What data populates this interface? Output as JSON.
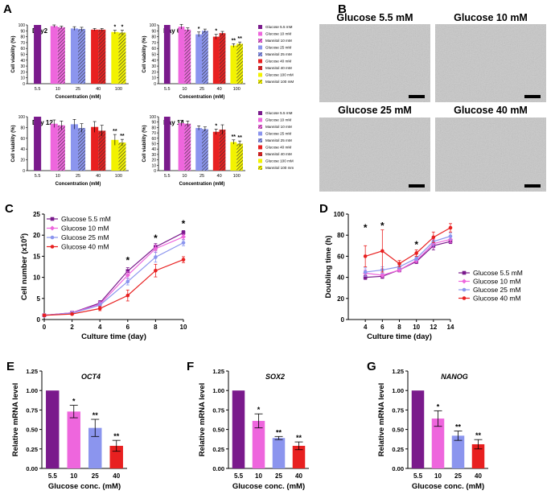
{
  "colors": {
    "g55": "#7a1a8c",
    "g10": "#ee66dd",
    "g25": "#8b95ee",
    "g40": "#e82020",
    "glu100": "#f2f200",
    "mannitol_hatch": "#333333"
  },
  "panels": {
    "A": {
      "letter": "A",
      "legend": [
        "Glucose 5.5 mM",
        "Glucose 10 mM",
        "Mannitol 10 mM",
        "Glucose 25 mM",
        "Mannitol 25 mM",
        "Glucose 40 mM",
        "Mannitol 40 mM",
        "Glucose 100 mM",
        "Mannitol 100 mM"
      ],
      "legend2": [
        "Glucose 5.5 mM",
        "Glucose 10 mM",
        "Mannitol 10 mM",
        "Glucose 25 mM",
        "Mannitol 25 mM",
        "Glucose 40 mM",
        "Mannitol 40 mM",
        "Glucose 100 mM",
        "Mannitol 100 mm"
      ]
    },
    "B": {
      "letter": "B",
      "images": [
        "Glucose 5.5 mM",
        "Glucose 10 mM",
        "Glucose 25 mM",
        "Glucose 40 mM"
      ]
    },
    "C": {
      "letter": "C"
    },
    "D": {
      "letter": "D"
    },
    "E": {
      "letter": "E"
    },
    "F": {
      "letter": "F"
    },
    "G": {
      "letter": "G"
    }
  },
  "chart_data": [
    {
      "id": "A1",
      "type": "bar",
      "title": "Day2",
      "xlabel": "Concentration (mM)",
      "ylabel": "Cell viability (%)",
      "ylim": [
        0,
        100
      ],
      "yticks": [
        0,
        10,
        20,
        30,
        40,
        50,
        60,
        70,
        80,
        90,
        100
      ],
      "groups": [
        "5.5",
        "10",
        "25",
        "40",
        "100"
      ],
      "series": [
        {
          "name": "Glucose 5.5",
          "values": [
            100
          ]
        },
        {
          "name": "Glucose 10",
          "values": [
            98
          ]
        },
        {
          "name": "Mannitol 10",
          "values": [
            96
          ]
        },
        {
          "name": "Glucose 25",
          "values": [
            94
          ]
        },
        {
          "name": "Mannitol 25",
          "values": [
            93
          ]
        },
        {
          "name": "Glucose 40",
          "values": [
            92
          ]
        },
        {
          "name": "Mannitol 40",
          "values": [
            92
          ]
        },
        {
          "name": "Glucose 100",
          "values": [
            88
          ]
        },
        {
          "name": "Mannitol 100",
          "values": [
            87
          ]
        }
      ],
      "errors": [
        0,
        2,
        2,
        3,
        3,
        2,
        2,
        3,
        4
      ],
      "stars": [
        "",
        "",
        "",
        "",
        "",
        "",
        "",
        "*",
        "*"
      ]
    },
    {
      "id": "A2",
      "type": "bar",
      "title": "Day 6",
      "xlabel": "Concentration (mM)",
      "ylabel": "Cell viability (%)",
      "ylim": [
        0,
        100
      ],
      "yticks": [
        0,
        10,
        20,
        30,
        40,
        50,
        60,
        70,
        80,
        90,
        100
      ],
      "groups": [
        "5.5",
        "10",
        "25",
        "40",
        "100"
      ],
      "series": [
        {
          "name": "Glucose 5.5",
          "values": [
            100
          ]
        },
        {
          "name": "Glucose 10",
          "values": [
            97
          ]
        },
        {
          "name": "Mannitol 10",
          "values": [
            92
          ]
        },
        {
          "name": "Glucose 25",
          "values": [
            84
          ]
        },
        {
          "name": "Mannitol 25",
          "values": [
            90
          ]
        },
        {
          "name": "Glucose 40",
          "values": [
            80
          ]
        },
        {
          "name": "Mannitol 40",
          "values": [
            86
          ]
        },
        {
          "name": "Glucose 100",
          "values": [
            65
          ]
        },
        {
          "name": "Mannitol 100",
          "values": [
            68
          ]
        }
      ],
      "errors": [
        0,
        4,
        3,
        4,
        3,
        4,
        3,
        3,
        3
      ],
      "stars": [
        "",
        "",
        "",
        "*",
        "",
        "*",
        "",
        "**",
        "**"
      ]
    },
    {
      "id": "A3",
      "type": "bar",
      "title": "Day 12",
      "xlabel": "Concentration (mM)",
      "ylabel": "Cell viability (%)",
      "ylim": [
        0,
        100
      ],
      "yticks": [
        0,
        20,
        40,
        60,
        80,
        100
      ],
      "groups": [
        "5.5",
        "10",
        "25",
        "40",
        "100"
      ],
      "series": [
        {
          "name": "Glucose 5.5",
          "values": [
            100
          ]
        },
        {
          "name": "Glucose 10",
          "values": [
            87
          ]
        },
        {
          "name": "Mannitol 10",
          "values": [
            84
          ]
        },
        {
          "name": "Glucose 25",
          "values": [
            86
          ]
        },
        {
          "name": "Mannitol 25",
          "values": [
            79
          ]
        },
        {
          "name": "Glucose 40",
          "values": [
            81
          ]
        },
        {
          "name": "Mannitol 40",
          "values": [
            74
          ]
        },
        {
          "name": "Glucose 100",
          "values": [
            57
          ]
        },
        {
          "name": "Mannitol 100",
          "values": [
            52
          ]
        }
      ],
      "errors": [
        0,
        7,
        8,
        9,
        8,
        10,
        10,
        10,
        6
      ],
      "stars": [
        "",
        "",
        "",
        "",
        "",
        "",
        "",
        "**",
        "**"
      ]
    },
    {
      "id": "A4",
      "type": "bar",
      "title": "Day 14",
      "xlabel": "Concentration (mM)",
      "ylabel": "Cell viability (%)",
      "ylim": [
        0,
        100
      ],
      "yticks": [
        0,
        10,
        20,
        30,
        40,
        50,
        60,
        70,
        80,
        90,
        100
      ],
      "groups": [
        "5.5",
        "10",
        "25",
        "40",
        "100"
      ],
      "series": [
        {
          "name": "Glucose 5.5",
          "values": [
            100
          ]
        },
        {
          "name": "Glucose 10",
          "values": [
            88
          ]
        },
        {
          "name": "Mannitol 10",
          "values": [
            87
          ]
        },
        {
          "name": "Glucose 25",
          "values": [
            79
          ]
        },
        {
          "name": "Mannitol 25",
          "values": [
            77
          ]
        },
        {
          "name": "Glucose 40",
          "values": [
            72
          ]
        },
        {
          "name": "Mannitol 40",
          "values": [
            76
          ]
        },
        {
          "name": "Glucose 100",
          "values": [
            53
          ]
        },
        {
          "name": "Mannitol 100",
          "values": [
            50
          ]
        }
      ],
      "errors": [
        0,
        5,
        5,
        4,
        4,
        5,
        9,
        4,
        5
      ],
      "stars": [
        "",
        "",
        "",
        "",
        "",
        "*",
        "",
        "**",
        "**"
      ]
    },
    {
      "id": "C",
      "type": "line",
      "xlabel": "Culture time (day)",
      "ylabel": "Cell number (x10",
      "ylabel_sup": "5",
      "ylabel_end": ")",
      "xlim": [
        0,
        10
      ],
      "ylim": [
        0,
        25
      ],
      "xticks": [
        0,
        2,
        4,
        6,
        8,
        10
      ],
      "yticks": [
        0,
        5,
        10,
        15,
        20,
        25
      ],
      "x": [
        0,
        2,
        4,
        6,
        8,
        10
      ],
      "series": [
        {
          "name": "Glucose 5.5 mM",
          "values": [
            1,
            1.6,
            3.9,
            11.5,
            17.2,
            20.6
          ],
          "errors": [
            0.1,
            0.2,
            0.6,
            0.8,
            0.8,
            0.5
          ]
        },
        {
          "name": "Glucose 10 mM",
          "values": [
            1,
            1.6,
            3.6,
            10.5,
            16.8,
            19.6
          ],
          "errors": [
            0.1,
            0.2,
            0.6,
            0.8,
            0.9,
            0.6
          ]
        },
        {
          "name": "Glucose 25 mM",
          "values": [
            1,
            1.5,
            3.4,
            9.0,
            14.8,
            18.2
          ],
          "errors": [
            0.1,
            0.2,
            0.6,
            0.8,
            1.2,
            0.7
          ]
        },
        {
          "name": "Glucose 40 mM",
          "values": [
            1,
            1.3,
            2.6,
            5.7,
            11.6,
            14.2
          ],
          "errors": [
            0.1,
            0.2,
            0.5,
            1.3,
            1.5,
            0.7
          ]
        }
      ],
      "stars": [
        {
          "x": 6,
          "y": 14,
          "text": "*"
        },
        {
          "x": 8,
          "y": 19.3,
          "text": "*"
        },
        {
          "x": 10,
          "y": 22.7,
          "text": "*"
        }
      ]
    },
    {
      "id": "D",
      "type": "line",
      "xlabel": "Culture time (day)",
      "ylabel": "Doubling time (h)",
      "xlim": [
        2,
        14
      ],
      "ylim": [
        0,
        100
      ],
      "xticks": [
        4,
        6,
        8,
        10,
        12,
        14
      ],
      "yticks": [
        0,
        20,
        40,
        60,
        80,
        100
      ],
      "x": [
        4,
        6,
        8,
        10,
        12,
        14
      ],
      "series": [
        {
          "name": "Glucose 5.5 mM",
          "values": [
            40,
            41,
            47,
            55,
            70,
            74
          ],
          "errors": [
            2,
            2,
            2,
            2,
            4,
            2
          ]
        },
        {
          "name": "Glucose 10 mM",
          "values": [
            44,
            42,
            47,
            56,
            72,
            76
          ],
          "errors": [
            3,
            2,
            2,
            2,
            4,
            3
          ]
        },
        {
          "name": "Glucose 25 mM",
          "values": [
            45,
            47,
            50,
            58,
            74,
            79
          ],
          "errors": [
            4,
            3,
            2,
            2,
            4,
            3
          ]
        },
        {
          "name": "Glucose 40 mM",
          "values": [
            60,
            65,
            53,
            63,
            78,
            87
          ],
          "errors": [
            10,
            20,
            3,
            3,
            5,
            4
          ]
        }
      ],
      "stars": [
        {
          "x": 4,
          "y": 87,
          "text": "*"
        },
        {
          "x": 6,
          "y": 89,
          "text": "*"
        },
        {
          "x": 10,
          "y": 71,
          "text": "*"
        }
      ]
    },
    {
      "id": "E",
      "type": "bar",
      "title": "OCT4",
      "xlabel": "Glucose conc. (mM)",
      "ylabel": "Relative mRNA level",
      "ylim": [
        0,
        1.25
      ],
      "yticks": [
        "0.00",
        "0.25",
        "0.50",
        "0.75",
        "1.00",
        "1.25"
      ],
      "categories": [
        "5.5",
        "10",
        "25",
        "40"
      ],
      "values": [
        1.0,
        0.73,
        0.52,
        0.29
      ],
      "errors": [
        0,
        0.08,
        0.11,
        0.07
      ],
      "stars": [
        "",
        "*",
        "**",
        "**"
      ]
    },
    {
      "id": "F",
      "type": "bar",
      "title": "SOX2",
      "xlabel": "Glucose conc. (mM)",
      "ylabel": "Relative mRNA level",
      "ylim": [
        0,
        1.25
      ],
      "yticks": [
        "0.00",
        "0.25",
        "0.50",
        "0.75",
        "1.00",
        "1.25"
      ],
      "categories": [
        "5.5",
        "10",
        "25",
        "40"
      ],
      "values": [
        1.0,
        0.61,
        0.39,
        0.29
      ],
      "errors": [
        0,
        0.09,
        0.02,
        0.05
      ],
      "stars": [
        "",
        "*",
        "**",
        "**"
      ]
    },
    {
      "id": "G",
      "type": "bar",
      "title": "NANOG",
      "xlabel": "Glucose conc. (mM)",
      "ylabel": "Relative mRNA level",
      "ylim": [
        0,
        1.25
      ],
      "yticks": [
        "0.00",
        "0.25",
        "0.50",
        "0.75",
        "1.00",
        "1.25"
      ],
      "categories": [
        "5.5",
        "10",
        "25",
        "40"
      ],
      "values": [
        1.0,
        0.64,
        0.42,
        0.31
      ],
      "errors": [
        0,
        0.1,
        0.06,
        0.06
      ],
      "stars": [
        "",
        "*",
        "**",
        "**"
      ]
    }
  ]
}
